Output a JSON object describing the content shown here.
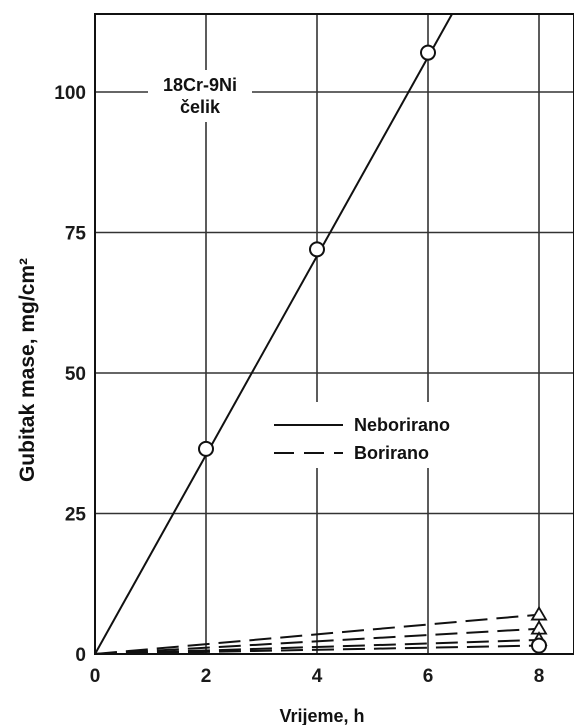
{
  "chart_data": {
    "type": "line",
    "title": "",
    "xlabel": "Vrijeme, h",
    "ylabel": "Gubitak mase, mg/cm²",
    "xlim": [
      0,
      8.7
    ],
    "ylim": [
      0,
      114
    ],
    "x_ticks": [
      "0",
      "2",
      "4",
      "6",
      "8"
    ],
    "y_ticks": [
      "0",
      "25",
      "50",
      "75",
      "100"
    ],
    "grid": true,
    "annotation_lines": [
      "18Cr-9Ni",
      "čelik"
    ],
    "legend": {
      "placement": "center-right",
      "entries": [
        {
          "label": "Neborirano",
          "style": "solid"
        },
        {
          "label": "Borirano",
          "style": "dashed"
        }
      ]
    },
    "series": [
      {
        "style": "solid",
        "x": [
          0,
          8.7
        ],
        "y": [
          0,
          154
        ]
      },
      {
        "style": "dashed",
        "x": [
          0,
          8
        ],
        "y": [
          0,
          7
        ]
      },
      {
        "style": "dashed",
        "x": [
          0,
          8
        ],
        "y": [
          0,
          4.5
        ]
      },
      {
        "style": "dashed",
        "x": [
          0,
          8
        ],
        "y": [
          0,
          2.5
        ]
      },
      {
        "style": "dashed",
        "x": [
          0,
          8
        ],
        "y": [
          0,
          1.5
        ]
      }
    ],
    "points": [
      {
        "marker": "circle",
        "x": 2,
        "y": 36.5
      },
      {
        "marker": "circle",
        "x": 4,
        "y": 72
      },
      {
        "marker": "circle",
        "x": 6,
        "y": 107
      },
      {
        "marker": "triangle",
        "x": 8,
        "y": 7
      },
      {
        "marker": "triangle",
        "x": 8,
        "y": 4.5
      },
      {
        "marker": "triangle",
        "x": 8,
        "y": 2.5
      },
      {
        "marker": "circle",
        "x": 8,
        "y": 1.5
      }
    ],
    "colors": {
      "line": "#111111",
      "grid": "#333333",
      "background": "#ffffff"
    }
  }
}
